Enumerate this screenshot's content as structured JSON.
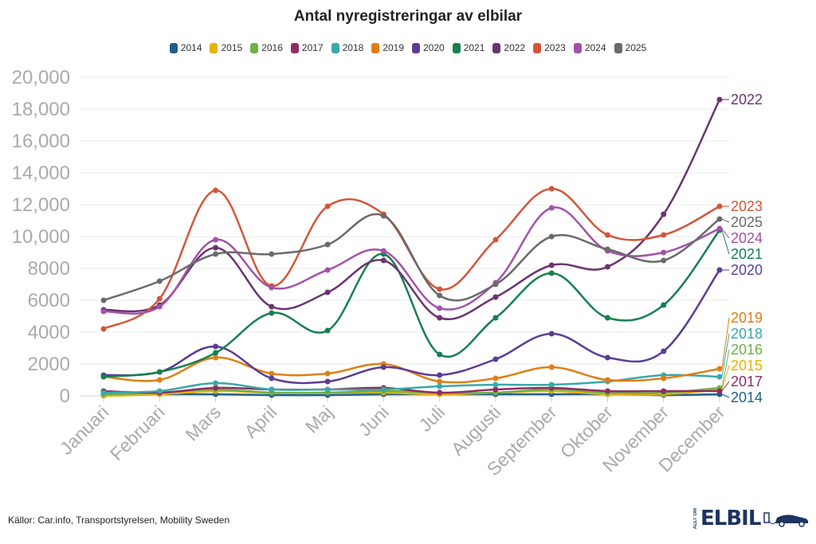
{
  "chart_data": {
    "type": "line",
    "title": "Antal nyregistreringar av elbilar",
    "xlabel": "",
    "ylabel": "",
    "ylim": [
      0,
      20000
    ],
    "yticks": [
      "0",
      "2000",
      "4000",
      "6000",
      "8000",
      "10,000",
      "12,000",
      "14,000",
      "16,000",
      "18,000",
      "20,000"
    ],
    "grid": true,
    "legend_position": "top-center",
    "categories": [
      "Januari",
      "Februari",
      "Mars",
      "April",
      "Maj",
      "Juni",
      "Juli",
      "Augusti",
      "September",
      "Oktober",
      "November",
      "December"
    ],
    "series": [
      {
        "name": "2014",
        "color": "#1f5f8f",
        "values": [
          100,
          100,
          100,
          50,
          50,
          100,
          100,
          100,
          100,
          100,
          50,
          100
        ]
      },
      {
        "name": "2015",
        "color": "#e8b100",
        "values": [
          0,
          100,
          300,
          200,
          200,
          200,
          100,
          200,
          300,
          100,
          100,
          400
        ]
      },
      {
        "name": "2016",
        "color": "#6fb04a",
        "values": [
          100,
          200,
          400,
          200,
          200,
          300,
          200,
          200,
          400,
          200,
          200,
          500
        ]
      },
      {
        "name": "2017",
        "color": "#8e2d63",
        "values": [
          300,
          200,
          500,
          400,
          400,
          500,
          200,
          400,
          500,
          300,
          300,
          300
        ]
      },
      {
        "name": "2018",
        "color": "#3aa8a8",
        "values": [
          200,
          300,
          800,
          400,
          400,
          400,
          600,
          700,
          700,
          900,
          1300,
          1200
        ]
      },
      {
        "name": "2019",
        "color": "#e07e12",
        "values": [
          1200,
          1000,
          2400,
          1400,
          1400,
          2000,
          900,
          1100,
          1800,
          1000,
          1100,
          1700
        ]
      },
      {
        "name": "2020",
        "color": "#5b3d96",
        "values": [
          1300,
          1500,
          3100,
          1100,
          900,
          1800,
          1300,
          2300,
          3900,
          2400,
          2800,
          7900
        ]
      },
      {
        "name": "2021",
        "color": "#168050",
        "values": [
          1200,
          1500,
          2700,
          5200,
          4100,
          8900,
          2600,
          4900,
          7700,
          4900,
          5700,
          10400
        ]
      },
      {
        "name": "2022",
        "color": "#6a3470",
        "values": [
          5400,
          5700,
          9300,
          5600,
          6500,
          8500,
          4900,
          6200,
          8200,
          8100,
          11400,
          18600
        ]
      },
      {
        "name": "2023",
        "color": "#d4553a",
        "values": [
          4200,
          6100,
          12900,
          6900,
          11900,
          11400,
          6700,
          9800,
          13000,
          10100,
          10100,
          11900
        ]
      },
      {
        "name": "2024",
        "color": "#a252a8",
        "values": [
          5300,
          5600,
          9800,
          6800,
          7900,
          9100,
          5500,
          7100,
          11800,
          9100,
          9000,
          10500
        ]
      },
      {
        "name": "2025",
        "color": "#6a6a6a",
        "values": [
          6000,
          7200,
          8900,
          8900,
          9500,
          11300,
          6300,
          7000,
          10000,
          9200,
          8500,
          11100
        ]
      }
    ]
  },
  "source": "Källor: Car.info, Transportstyrelsen, Mobility Sweden",
  "logo": {
    "small": "ALLT OM",
    "big": "ELBIL"
  }
}
